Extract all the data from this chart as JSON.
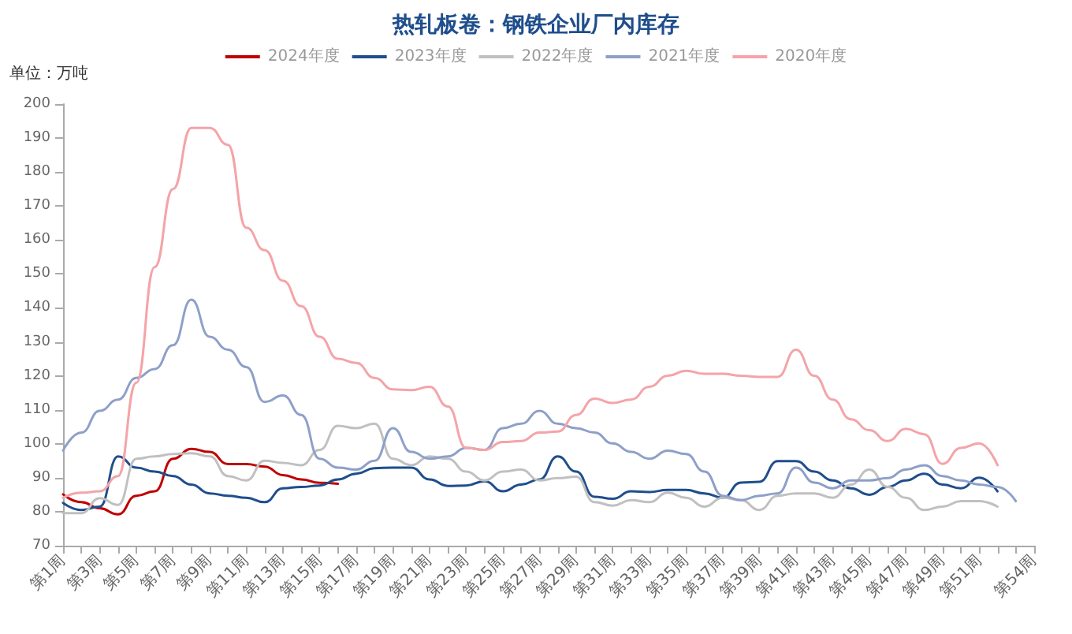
{
  "chart_data": {
    "type": "line",
    "title": "热轧板卷：钢铁企业厂内库存",
    "ylabel": "单位：万吨",
    "categories": [
      "第1周",
      null,
      "第3周",
      null,
      "第5周",
      null,
      "第7周",
      null,
      "第9周",
      null,
      "第11周",
      null,
      "第13周",
      null,
      "第15周",
      null,
      "第17周",
      null,
      "第19周",
      null,
      "第21周",
      null,
      "第23周",
      null,
      "第25周",
      null,
      "第27周",
      null,
      "第29周",
      null,
      "第31周",
      null,
      "第33周",
      null,
      "第35周",
      null,
      "第37周",
      null,
      "第39周",
      null,
      "第41周",
      null,
      "第43周",
      null,
      "第45周",
      null,
      "第47周",
      null,
      "第49周",
      null,
      "第51周",
      null,
      null,
      "第54周"
    ],
    "series": [
      {
        "name": "2024年度",
        "color": "#c00000",
        "values": [
          85.1,
          82.8,
          81,
          79.2,
          84.7,
          86,
          95.6,
          98.5,
          97.6,
          94,
          94,
          93.3,
          90.8,
          89.5,
          88.5,
          88.2,
          null,
          null,
          null,
          null,
          null,
          null,
          null,
          null,
          null,
          null,
          null,
          null,
          null,
          null,
          null,
          null,
          null,
          null,
          null,
          null,
          null,
          null,
          null,
          null,
          null,
          null,
          null,
          null,
          null,
          null,
          null,
          null,
          null,
          null,
          null,
          null,
          null,
          null
        ]
      },
      {
        "name": "2023年度",
        "color": "#1f4e8c",
        "values": [
          82.6,
          80.5,
          81.5,
          96.3,
          93,
          91.8,
          90.5,
          88,
          85.4,
          84.7,
          84.1,
          82.8,
          86.9,
          87.3,
          87.7,
          89.5,
          91.2,
          92.8,
          93,
          93,
          89.5,
          87.6,
          87.7,
          89,
          86,
          88,
          89.5,
          96.3,
          91.8,
          84.4,
          83.8,
          86,
          85.8,
          86.4,
          86.4,
          85.4,
          84.1,
          88.6,
          88.8,
          94.9,
          94.9,
          91.8,
          89.2,
          86.9,
          85,
          87.3,
          89.2,
          91.2,
          88,
          86.9,
          90,
          86,
          null,
          null
        ]
      },
      {
        "name": "2022年度",
        "color": "#c0c0c0",
        "values": [
          79.6,
          79.6,
          84,
          82,
          95.6,
          96.3,
          97,
          97.2,
          96.3,
          90.5,
          89.2,
          95,
          94.4,
          93.7,
          98.2,
          105.3,
          104.6,
          105.9,
          95.6,
          93.7,
          96.3,
          95.6,
          91.8,
          89.2,
          91.8,
          92.4,
          89.2,
          89.9,
          90.3,
          82.8,
          81.8,
          83.4,
          82.8,
          85.6,
          84.1,
          81.5,
          84.1,
          83.4,
          80.5,
          84.7,
          85.4,
          85.4,
          84.1,
          88,
          92.4,
          87.3,
          84.1,
          80.5,
          81.5,
          83.1,
          83.1,
          81.5,
          null,
          null
        ]
      },
      {
        "name": "2021年度",
        "color": "#8ea0c8",
        "values": [
          98,
          103.3,
          109.7,
          113,
          119.4,
          122,
          129,
          142.4,
          131.5,
          127.7,
          122.6,
          112.3,
          114.2,
          108.5,
          95.6,
          93,
          92.4,
          95,
          104.6,
          97.6,
          95.6,
          96.3,
          98.8,
          98.2,
          104.6,
          105.9,
          109.7,
          105.9,
          104.6,
          103.3,
          100.1,
          97.6,
          95.6,
          98,
          97,
          91.8,
          84.7,
          83.4,
          84.7,
          85.4,
          93,
          88.6,
          86.9,
          89.2,
          89.2,
          89.9,
          92.4,
          93.7,
          90.5,
          89.2,
          88,
          87.3,
          83.1,
          null
        ]
      },
      {
        "name": "2020年度",
        "color": "#f4a4a8",
        "values": [
          84.1,
          85.6,
          86,
          90.5,
          118,
          152,
          175,
          193,
          193,
          188,
          163.6,
          157,
          148,
          140.5,
          131.5,
          125,
          123.8,
          119.4,
          116,
          115.8,
          116.8,
          111,
          98.8,
          98.2,
          100.5,
          100.8,
          103.3,
          103.6,
          108.5,
          113.3,
          112,
          113,
          116.8,
          120,
          121.5,
          120.6,
          120.6,
          120,
          119.7,
          119.7,
          127.7,
          120,
          113,
          107.2,
          104,
          100.8,
          104.4,
          102.8,
          94.1,
          98.8,
          100.1,
          93.7,
          null,
          null
        ]
      }
    ],
    "ylim": [
      70,
      200
    ],
    "yticks": [
      70,
      80,
      90,
      100,
      110,
      120,
      130,
      140,
      150,
      160,
      170,
      180,
      190,
      200
    ],
    "legend": "top",
    "marker": "none",
    "line_style": "solid"
  }
}
